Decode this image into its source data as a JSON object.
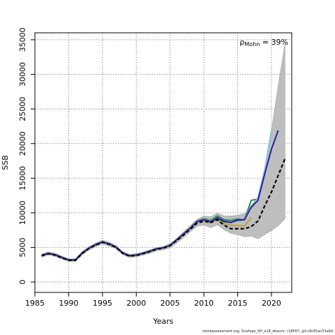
{
  "chart_data": {
    "type": "line",
    "xlabel": "Years",
    "ylabel": "SSB",
    "xlim": [
      1985,
      2023
    ],
    "ylim": [
      -1500,
      36000
    ],
    "x_ticks": [
      1985,
      1990,
      1995,
      2000,
      2005,
      2010,
      2015,
      2020
    ],
    "y_ticks": [
      0,
      5000,
      10000,
      15000,
      20000,
      25000,
      30000,
      35000
    ],
    "grid": true,
    "grid_style": "dotted",
    "annotation": {
      "symbol": "ρ",
      "subscript": "Mohn",
      "text": " = 39%"
    },
    "credit": "stockassessment.org, Scallops_SH_a18_wtaunr, r18567, git:c9c81ac53a0d",
    "ribbon": {
      "color": "#bebebe",
      "x": [
        1986,
        1987,
        1988,
        1989,
        1990,
        1991,
        1992,
        1993,
        1994,
        1995,
        1996,
        1997,
        1998,
        1999,
        2000,
        2001,
        2002,
        2003,
        2004,
        2005,
        2006,
        2007,
        2008,
        2009,
        2010,
        2011,
        2012,
        2013,
        2014,
        2015,
        2016,
        2017,
        2018,
        2019,
        2020,
        2021,
        2022
      ],
      "lower": [
        3600,
        3900,
        3700,
        3300,
        2950,
        2950,
        3900,
        4600,
        5100,
        5500,
        5200,
        4800,
        3950,
        3550,
        3650,
        3900,
        4150,
        4500,
        4650,
        4950,
        5650,
        6450,
        7250,
        8050,
        8250,
        7850,
        8250,
        7550,
        7050,
        6850,
        6550,
        6650,
        6250,
        6850,
        7450,
        8150,
        9150
      ],
      "upper": [
        4050,
        4350,
        4150,
        3750,
        3350,
        3350,
        4400,
        5100,
        5650,
        6050,
        5750,
        5300,
        4400,
        4000,
        4100,
        4350,
        4650,
        5000,
        5150,
        5550,
        6350,
        7250,
        8150,
        9050,
        9550,
        9450,
        9950,
        9550,
        9550,
        9650,
        9850,
        10550,
        11850,
        15850,
        21850,
        28350,
        34450
      ]
    },
    "series": [
      {
        "color": "#000000",
        "dashed": true,
        "values": [
          3800,
          4100,
          3900,
          3500,
          3150,
          3150,
          4150,
          4850,
          5350,
          5750,
          5450,
          5000,
          4150,
          3750,
          3850,
          4100,
          4400,
          4750,
          4900,
          5250,
          6000,
          6800,
          7650,
          8500,
          8800,
          8600,
          9000,
          8200,
          7700,
          7700,
          7700,
          8000,
          8800,
          11000,
          13000,
          15400,
          17800
        ]
      },
      {
        "color": "#2b1fa0",
        "dashed": false,
        "values": [
          3850,
          4150,
          3950,
          3550,
          3200,
          3200,
          4200,
          4900,
          5400,
          5800,
          5500,
          5050,
          4200,
          3800,
          3900,
          4150,
          4450,
          4800,
          4950,
          5300,
          6100,
          6950,
          7800,
          8750,
          9000,
          8700,
          9300,
          8800,
          8600,
          9000,
          9000,
          10800,
          11800,
          15600,
          19200,
          21900
        ]
      },
      {
        "color": "#7fc2e0",
        "dashed": false,
        "values": [
          3850,
          4150,
          3950,
          3550,
          3200,
          3200,
          4200,
          4900,
          5400,
          5800,
          5500,
          5050,
          4200,
          3800,
          3900,
          4150,
          4450,
          4800,
          4950,
          5300,
          6100,
          6950,
          7800,
          8750,
          9050,
          8750,
          9350,
          8850,
          8650,
          9050,
          9100,
          11000,
          12200,
          16200,
          21900
        ]
      },
      {
        "color": "#2e8b3a",
        "dashed": false,
        "values": [
          3850,
          4150,
          3950,
          3550,
          3200,
          3200,
          4200,
          4900,
          5400,
          5800,
          5500,
          5050,
          4200,
          3800,
          3900,
          4150,
          4450,
          4800,
          4950,
          5300,
          6100,
          6950,
          7800,
          8800,
          9150,
          8900,
          9550,
          9000,
          8900,
          9150,
          9000,
          11800,
          12000
        ]
      },
      {
        "color": "#1d6b5c",
        "dashed": false,
        "values": [
          3850,
          4150,
          3950,
          3550,
          3200,
          3200,
          4200,
          4900,
          5400,
          5800,
          5500,
          5050,
          4200,
          3800,
          3900,
          4150,
          4450,
          4800,
          4950,
          5300,
          6100,
          6950,
          7800,
          8750,
          9000,
          8700,
          9200,
          8700,
          8600,
          8900,
          9000
        ]
      },
      {
        "color": "#b5a642",
        "dashed": false,
        "values": [
          3850,
          4150,
          3950,
          3550,
          3200,
          3200,
          4200,
          4900,
          5400,
          5800,
          5500,
          5050,
          4200,
          3800,
          3900,
          4150,
          4450,
          4800,
          4950,
          5300,
          6100,
          6950,
          7800,
          8650,
          8900,
          8550,
          9050,
          8450,
          8200,
          8150,
          8100,
          9300
        ]
      }
    ]
  }
}
